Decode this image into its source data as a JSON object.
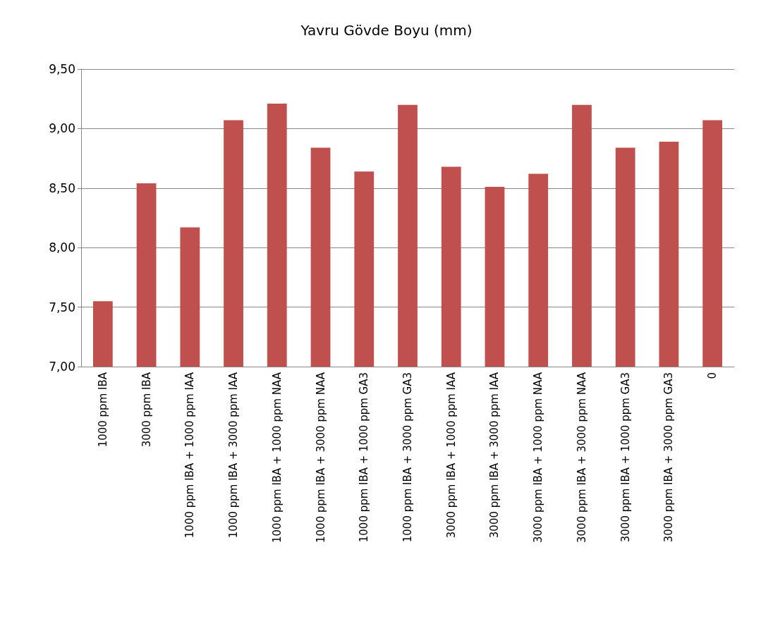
{
  "chart_data": {
    "type": "bar",
    "title": "Yavru Gövde Boyu (mm)",
    "categories": [
      "1000 ppm IBA",
      "3000 ppm IBA",
      "1000 ppm IBA + 1000 ppm IAA",
      "1000 ppm IBA + 3000 ppm IAA",
      "1000 ppm IBA + 1000 ppm NAA",
      "1000 ppm IBA + 3000 ppm NAA",
      "1000 ppm IBA + 1000 ppm GA3",
      "1000 ppm IBA + 3000 ppm GA3",
      "3000 ppm IBA + 1000 ppm IAA",
      "3000 ppm IBA + 3000 ppm IAA",
      "3000 ppm IBA + 1000 ppm NAA",
      "3000 ppm IBA + 3000 ppm NAA",
      "3000 ppm IBA + 1000 ppm GA3",
      "3000 ppm IBA + 3000 ppm GA3",
      "0"
    ],
    "values": [
      7.55,
      8.54,
      8.17,
      9.07,
      9.21,
      8.84,
      8.64,
      9.2,
      8.68,
      8.51,
      8.62,
      9.2,
      8.84,
      8.89,
      9.07
    ],
    "color": "#c0504d",
    "ylim": [
      7,
      9.5
    ],
    "yticks": [
      {
        "value": 7,
        "label": "7,00"
      },
      {
        "value": 7.5,
        "label": "7,50"
      },
      {
        "value": 8,
        "label": "8,00"
      },
      {
        "value": 8.5,
        "label": "8,50"
      },
      {
        "value": 9,
        "label": "9,00"
      },
      {
        "value": 9.5,
        "label": "9,50"
      }
    ],
    "grid": "y"
  }
}
